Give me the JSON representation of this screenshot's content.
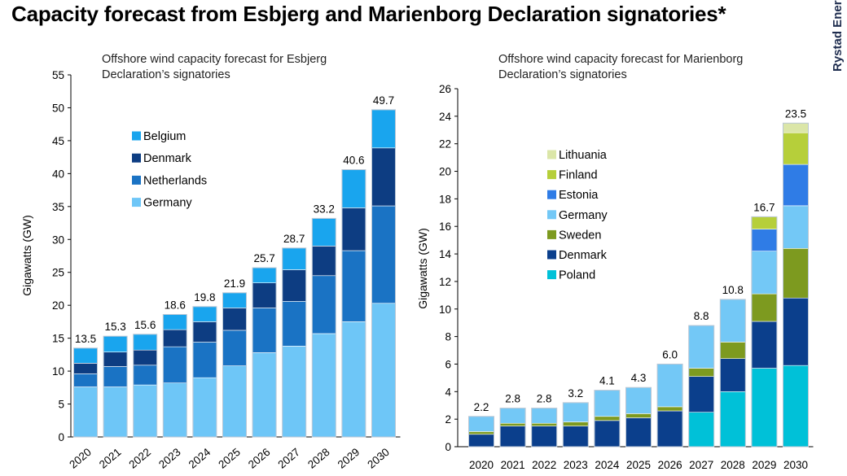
{
  "title": "Capacity forecast from Esbjerg and Marienborg Declaration signatories*",
  "brand": "Rystad Energy",
  "chart_data": [
    {
      "type": "bar",
      "stacked": true,
      "title": "Offshore wind capacity forecast for Esbjerg",
      "subtitle_line2": "Declaration’s signatories",
      "xlabel": "",
      "ylabel": "Gigawatts (GW)",
      "ylim": [
        0,
        55
      ],
      "yticks": [
        0,
        5,
        10,
        15,
        20,
        25,
        30,
        35,
        40,
        45,
        50,
        55
      ],
      "categories": [
        "2020",
        "2021",
        "2022",
        "2023",
        "2024",
        "2025",
        "2026",
        "2027",
        "2028",
        "2029",
        "2030"
      ],
      "totals": [
        "13.5",
        "15.3",
        "15.6",
        "18.6",
        "19.8",
        "21.9",
        "25.7",
        "28.7",
        "33.2",
        "40.6",
        "49.7"
      ],
      "series": [
        {
          "name": "Germany",
          "color": "#6ec6f7",
          "values": [
            7.6,
            7.6,
            7.9,
            8.2,
            9.0,
            10.8,
            12.8,
            13.8,
            15.7,
            17.5,
            20.3
          ]
        },
        {
          "name": "Netherlands",
          "color": "#1a73c4",
          "values": [
            2.0,
            3.1,
            3.0,
            5.5,
            5.4,
            5.4,
            6.8,
            6.8,
            8.8,
            10.8,
            14.8
          ]
        },
        {
          "name": "Denmark",
          "color": "#0d3d82",
          "values": [
            1.6,
            2.2,
            2.3,
            2.6,
            3.1,
            3.4,
            3.8,
            4.8,
            4.5,
            6.5,
            8.8
          ]
        },
        {
          "name": "Belgium",
          "color": "#19a5ee",
          "values": [
            2.3,
            2.4,
            2.4,
            2.3,
            2.3,
            2.3,
            2.3,
            3.3,
            4.2,
            5.8,
            5.8
          ]
        }
      ],
      "legend_order": [
        "Belgium",
        "Denmark",
        "Netherlands",
        "Germany"
      ],
      "legend": "upper-left"
    },
    {
      "type": "bar",
      "stacked": true,
      "title": "Offshore wind capacity forecast for Marienborg",
      "subtitle_line2": "Declaration’s signatories",
      "xlabel": "",
      "ylabel": "Gigawatts (GW)",
      "ylim": [
        0,
        26
      ],
      "yticks": [
        0,
        2,
        4,
        6,
        8,
        10,
        12,
        14,
        16,
        18,
        20,
        22,
        24,
        26
      ],
      "categories": [
        "2020",
        "2021",
        "2022",
        "2023",
        "2024",
        "2025",
        "2026",
        "2027",
        "2028",
        "2029",
        "2030"
      ],
      "totals": [
        "2.2",
        "2.8",
        "2.8",
        "3.2",
        "4.1",
        "4.3",
        "6.0",
        "8.8",
        "10.8",
        "16.7",
        "23.5"
      ],
      "series": [
        {
          "name": "Poland",
          "color": "#00c1d8",
          "values": [
            0,
            0,
            0,
            0,
            0,
            0,
            0,
            2.5,
            4.0,
            5.7,
            5.9
          ]
        },
        {
          "name": "Denmark",
          "color": "#0b3f8c",
          "values": [
            0.9,
            1.5,
            1.5,
            1.5,
            1.9,
            2.1,
            2.6,
            2.6,
            2.4,
            3.4,
            4.9
          ]
        },
        {
          "name": "Sweden",
          "color": "#7d9a1f",
          "values": [
            0.2,
            0.2,
            0.2,
            0.3,
            0.3,
            0.3,
            0.3,
            0.6,
            1.2,
            2.0,
            3.6
          ]
        },
        {
          "name": "Germany",
          "color": "#73c8f6",
          "values": [
            1.1,
            1.1,
            1.1,
            1.4,
            1.9,
            1.9,
            3.1,
            3.1,
            3.1,
            3.1,
            3.1
          ]
        },
        {
          "name": "Estonia",
          "color": "#2f7ce6",
          "values": [
            0,
            0,
            0,
            0,
            0,
            0,
            0,
            0,
            0,
            1.6,
            3.0
          ]
        },
        {
          "name": "Finland",
          "color": "#b6cf3a",
          "values": [
            0,
            0,
            0,
            0,
            0,
            0,
            0,
            0,
            0,
            0.9,
            2.3
          ]
        },
        {
          "name": "Lithuania",
          "color": "#dbe6a8",
          "values": [
            0,
            0,
            0,
            0,
            0,
            0,
            0,
            0,
            0,
            0,
            0.7
          ]
        }
      ],
      "legend_order": [
        "Lithuania",
        "Finland",
        "Estonia",
        "Germany",
        "Sweden",
        "Denmark",
        "Poland"
      ],
      "legend": "upper-left"
    }
  ]
}
